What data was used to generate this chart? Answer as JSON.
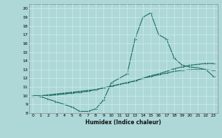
{
  "title": "",
  "xlabel": "Humidex (Indice chaleur)",
  "xlim": [
    -0.5,
    23.5
  ],
  "ylim": [
    8,
    20.5
  ],
  "xticks": [
    0,
    1,
    2,
    3,
    4,
    5,
    6,
    7,
    8,
    9,
    10,
    11,
    12,
    13,
    14,
    15,
    16,
    17,
    18,
    19,
    20,
    21,
    22,
    23
  ],
  "yticks": [
    8,
    9,
    10,
    11,
    12,
    13,
    14,
    15,
    16,
    17,
    18,
    19,
    20
  ],
  "bg_color": "#aed8d8",
  "grid_color": "#c8eaea",
  "line_color": "#1a6b5a",
  "line1_x": [
    0,
    1,
    2,
    3,
    4,
    5,
    6,
    7,
    8,
    9,
    10,
    11,
    12,
    13,
    14,
    15,
    16,
    17,
    18,
    19,
    20,
    21,
    22,
    23
  ],
  "line1_y": [
    10.0,
    9.9,
    9.6,
    9.3,
    9.0,
    8.7,
    8.2,
    8.2,
    8.5,
    9.5,
    11.5,
    12.0,
    12.5,
    16.5,
    19.0,
    19.5,
    17.0,
    16.5,
    14.3,
    13.5,
    13.3,
    13.2,
    13.0,
    12.2
  ],
  "line2_x": [
    0,
    1,
    2,
    3,
    4,
    5,
    6,
    7,
    8,
    9,
    10,
    11,
    12,
    13,
    14,
    15,
    16,
    17,
    18,
    19,
    20,
    21,
    22,
    23
  ],
  "line2_y": [
    10.0,
    10.0,
    10.1,
    10.2,
    10.3,
    10.4,
    10.5,
    10.6,
    10.7,
    10.9,
    11.1,
    11.3,
    11.5,
    11.7,
    12.0,
    12.3,
    12.5,
    12.8,
    13.1,
    13.3,
    13.5,
    13.6,
    13.7,
    13.7
  ],
  "line3_x": [
    0,
    1,
    2,
    3,
    4,
    5,
    6,
    7,
    8,
    9,
    10,
    11,
    12,
    13,
    14,
    15,
    16,
    17,
    18,
    19,
    20,
    21,
    22,
    23
  ],
  "line3_y": [
    10.0,
    10.0,
    10.0,
    10.1,
    10.2,
    10.3,
    10.4,
    10.5,
    10.7,
    10.9,
    11.1,
    11.3,
    11.5,
    11.7,
    12.0,
    12.2,
    12.4,
    12.6,
    12.8,
    12.9,
    13.0,
    13.0,
    13.0,
    12.9
  ],
  "xlabel_fontsize": 5.5,
  "tick_fontsize": 4.5,
  "lw": 0.8,
  "ms": 3.0
}
